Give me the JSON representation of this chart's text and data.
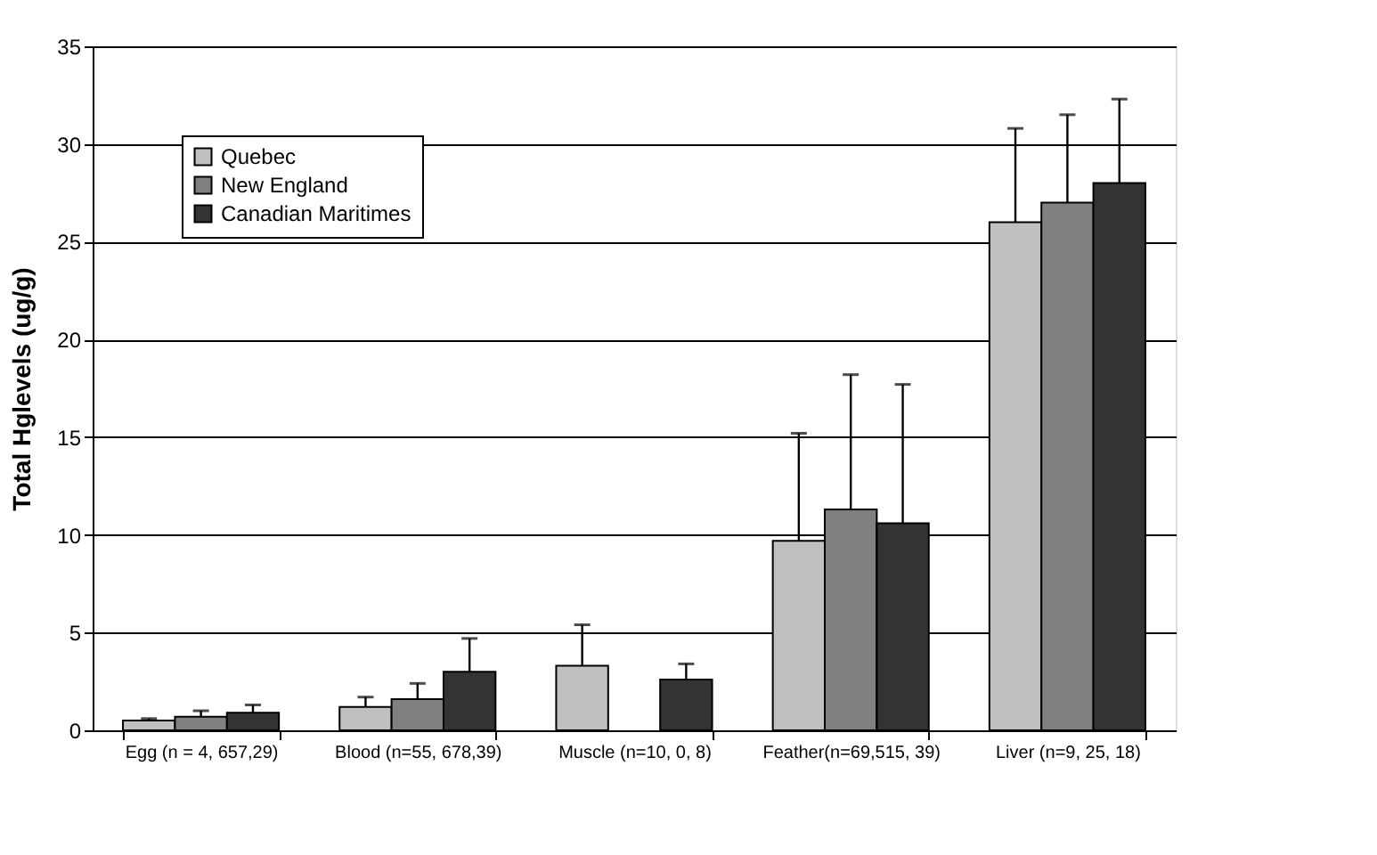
{
  "chart_data": {
    "type": "bar",
    "ylabel": "Total Hglevels (ug/g)",
    "categories": [
      "Egg (n = 4, 657,29)",
      "Blood (n=55, 678,39)",
      "Muscle (n=10, 0, 8)",
      "Feather(n=69,515, 39)",
      "Liver (n=9, 25, 18)"
    ],
    "series": [
      {
        "name": "Quebec",
        "color": "#c0c0c0",
        "values": [
          0.5,
          1.2,
          3.3,
          9.7,
          26.0
        ],
        "errors": [
          [
            0.5,
            0.6
          ],
          [
            1.2,
            1.7
          ],
          [
            3.3,
            5.4
          ],
          [
            9.7,
            15.2
          ],
          [
            26.0,
            30.8
          ]
        ]
      },
      {
        "name": "New England",
        "color": "#808080",
        "values": [
          0.7,
          1.6,
          null,
          11.3,
          27.0
        ],
        "errors": [
          [
            0.7,
            1.0
          ],
          [
            1.6,
            2.4
          ],
          null,
          [
            11.3,
            18.2
          ],
          [
            27.0,
            31.5
          ]
        ]
      },
      {
        "name": "Canadian Maritimes",
        "color": "#333333",
        "values": [
          0.9,
          3.0,
          2.6,
          10.6,
          28.0
        ],
        "errors": [
          [
            0.9,
            1.3
          ],
          [
            3.0,
            4.7
          ],
          [
            2.6,
            3.4
          ],
          [
            10.6,
            17.7
          ],
          [
            28.0,
            32.3
          ]
        ]
      }
    ],
    "ylim": [
      0,
      35
    ],
    "yticks": [
      0,
      5,
      10,
      15,
      20,
      25,
      30,
      35
    ],
    "grid": "y",
    "legend": "top left"
  }
}
